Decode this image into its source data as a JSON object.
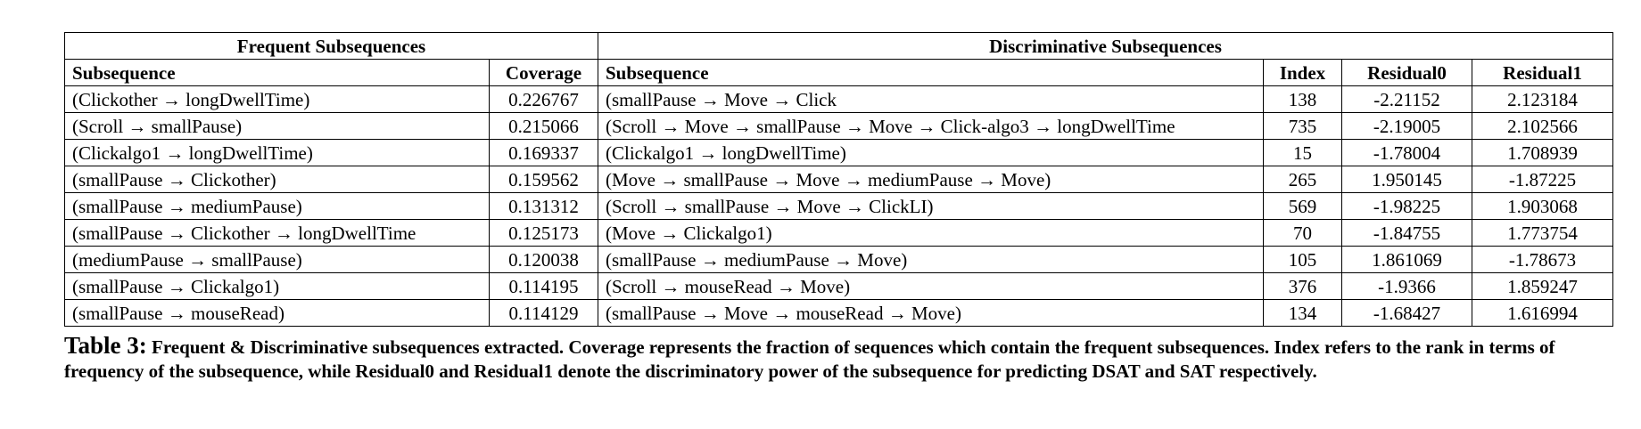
{
  "table": {
    "group_headers": {
      "frequent": "Frequent Subsequences",
      "discriminative": "Discriminative Subsequences"
    },
    "column_headers": {
      "freq_subsequence": "Subsequence",
      "coverage": "Coverage",
      "disc_subsequence": "Subsequence",
      "index": "Index",
      "residual0": "Residual0",
      "residual1": "Residual1"
    },
    "rows": [
      {
        "freq_subsequence": "(Clickother → longDwellTime)",
        "coverage": "0.226767",
        "disc_subsequence": "(smallPause → Move → Click",
        "index": "138",
        "residual0": "-2.21152",
        "residual1": "2.123184"
      },
      {
        "freq_subsequence": "(Scroll → smallPause)",
        "coverage": "0.215066",
        "disc_subsequence": "(Scroll → Move → smallPause → Move → Click-algo3 → longDwellTime",
        "index": "735",
        "residual0": "-2.19005",
        "residual1": "2.102566"
      },
      {
        "freq_subsequence": "(Clickalgo1 → longDwellTime)",
        "coverage": "0.169337",
        "disc_subsequence": "(Clickalgo1 → longDwellTime)",
        "index": "15",
        "residual0": "-1.78004",
        "residual1": "1.708939"
      },
      {
        "freq_subsequence": "(smallPause → Clickother)",
        "coverage": "0.159562",
        "disc_subsequence": "(Move → smallPause → Move → mediumPause → Move)",
        "index": "265",
        "residual0": "1.950145",
        "residual1": "-1.87225"
      },
      {
        "freq_subsequence": "(smallPause → mediumPause)",
        "coverage": "0.131312",
        "disc_subsequence": "(Scroll → smallPause → Move → ClickLI)",
        "index": "569",
        "residual0": "-1.98225",
        "residual1": "1.903068"
      },
      {
        "freq_subsequence": "(smallPause → Clickother → longDwellTime",
        "coverage": "0.125173",
        "disc_subsequence": "(Move → Clickalgo1)",
        "index": "70",
        "residual0": "-1.84755",
        "residual1": "1.773754"
      },
      {
        "freq_subsequence": "(mediumPause → smallPause)",
        "coverage": "0.120038",
        "disc_subsequence": "(smallPause → mediumPause → Move)",
        "index": "105",
        "residual0": "1.861069",
        "residual1": "-1.78673"
      },
      {
        "freq_subsequence": "(smallPause → Clickalgo1)",
        "coverage": "0.114195",
        "disc_subsequence": "(Scroll → mouseRead → Move)",
        "index": "376",
        "residual0": "-1.9366",
        "residual1": "1.859247"
      },
      {
        "freq_subsequence": "(smallPause → mouseRead)",
        "coverage": "0.114129",
        "disc_subsequence": "(smallPause → Move → mouseRead → Move)",
        "index": "134",
        "residual0": "-1.68427",
        "residual1": "1.616994"
      }
    ]
  },
  "caption": {
    "label": "Table 3:",
    "text": "Frequent & Discriminative subsequences extracted. Coverage represents the fraction of sequences which contain the frequent subsequences. Index refers to the rank in terms of frequency of the subsequence, while Residual0 and Residual1 denote the discriminatory power of the subsequence for predicting DSAT and SAT respectively."
  }
}
